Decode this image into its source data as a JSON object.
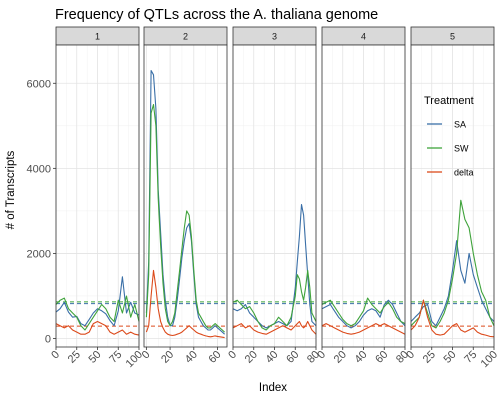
{
  "chart_data": {
    "type": "line",
    "title": "Frequency of QTLs across the A. thaliana genome",
    "xlabel": "Index",
    "ylabel": "# of Transcripts",
    "ylim": [
      -200,
      6900
    ],
    "y_ticks": [
      0,
      2000,
      4000,
      6000
    ],
    "grid": true,
    "legend": {
      "title": "Treatment",
      "placement": "inside-top-right-panel-5"
    },
    "colors": {
      "SA": "#3a6fa7",
      "SW": "#3fa33b",
      "delta": "#dc4a1b"
    },
    "thresholds": [
      {
        "series": "SA",
        "value": 820
      },
      {
        "series": "SW",
        "value": 860
      },
      {
        "series": "delta",
        "value": 290
      }
    ],
    "panels": [
      {
        "label": "1",
        "xlim": [
          0,
          100
        ],
        "x_ticks": [
          0,
          25,
          50,
          75,
          100
        ],
        "series": [
          {
            "name": "SA",
            "x": [
              0,
              5,
              10,
              15,
              20,
              25,
              30,
              35,
              40,
              45,
              50,
              55,
              60,
              65,
              70,
              75,
              80,
              85,
              90,
              95,
              100
            ],
            "y": [
              620,
              700,
              850,
              620,
              500,
              520,
              350,
              300,
              450,
              600,
              700,
              650,
              580,
              420,
              300,
              650,
              1450,
              600,
              850,
              600,
              550
            ]
          },
          {
            "name": "SW",
            "x": [
              0,
              5,
              10,
              15,
              20,
              25,
              30,
              35,
              40,
              45,
              50,
              55,
              60,
              65,
              70,
              75,
              80,
              85,
              90,
              95,
              100
            ],
            "y": [
              800,
              900,
              950,
              700,
              600,
              500,
              300,
              200,
              350,
              500,
              650,
              800,
              700,
              500,
              400,
              900,
              600,
              1000,
              500,
              800,
              400
            ]
          },
          {
            "name": "delta",
            "x": [
              0,
              5,
              10,
              15,
              20,
              25,
              30,
              35,
              40,
              45,
              50,
              55,
              60,
              65,
              70,
              75,
              80,
              85,
              90,
              95,
              100
            ],
            "y": [
              350,
              300,
              250,
              300,
              200,
              150,
              100,
              100,
              150,
              350,
              400,
              350,
              300,
              150,
              100,
              150,
              200,
              100,
              150,
              100,
              80
            ]
          }
        ]
      },
      {
        "label": "2",
        "xlim": [
          -2,
          68
        ],
        "x_ticks": [
          0,
          20,
          40,
          60
        ],
        "series": [
          {
            "name": "SA",
            "x": [
              0,
              2,
              4,
              6,
              8,
              10,
              12,
              14,
              16,
              18,
              20,
              22,
              24,
              26,
              28,
              30,
              32,
              34,
              36,
              38,
              40,
              42,
              44,
              46,
              48,
              50,
              52,
              54,
              56,
              58,
              60,
              62,
              64,
              66
            ],
            "y": [
              600,
              1800,
              6300,
              6200,
              5400,
              3500,
              2500,
              1500,
              900,
              500,
              300,
              300,
              500,
              900,
              1400,
              1900,
              2300,
              2600,
              2700,
              2300,
              1500,
              800,
              500,
              400,
              300,
              250,
              200,
              200,
              250,
              300,
              250,
              200,
              150,
              100
            ]
          },
          {
            "name": "SW",
            "x": [
              0,
              2,
              4,
              6,
              8,
              10,
              12,
              14,
              16,
              18,
              20,
              22,
              24,
              26,
              28,
              30,
              32,
              34,
              36,
              38,
              40,
              42,
              44,
              46,
              48,
              50,
              52,
              54,
              56,
              58,
              60,
              62,
              64,
              66
            ],
            "y": [
              500,
              1500,
              5300,
              5500,
              5000,
              3300,
              2200,
              1300,
              700,
              400,
              300,
              400,
              600,
              1100,
              1600,
              2100,
              2600,
              3000,
              2900,
              2400,
              1600,
              900,
              600,
              500,
              400,
              300,
              250,
              250,
              300,
              350,
              300,
              250,
              200,
              150
            ]
          },
          {
            "name": "delta",
            "x": [
              0,
              2,
              4,
              6,
              8,
              10,
              12,
              14,
              16,
              18,
              20,
              22,
              24,
              26,
              28,
              30,
              32,
              34,
              36,
              38,
              40,
              42,
              44,
              46,
              48,
              50,
              52,
              54,
              56,
              58,
              60,
              62,
              64,
              66
            ],
            "y": [
              150,
              300,
              1000,
              1600,
              1200,
              700,
              400,
              250,
              150,
              100,
              80,
              70,
              80,
              100,
              120,
              150,
              200,
              250,
              300,
              250,
              200,
              150,
              120,
              100,
              80,
              60,
              50,
              40,
              50,
              60,
              50,
              40,
              30,
              20
            ]
          }
        ]
      },
      {
        "label": "3",
        "xlim": [
          0,
          80
        ],
        "x_ticks": [
          0,
          20,
          40,
          60,
          80
        ],
        "series": [
          {
            "name": "SA",
            "x": [
              0,
              4,
              8,
              12,
              16,
              20,
              24,
              28,
              32,
              36,
              40,
              44,
              48,
              52,
              56,
              60,
              62,
              64,
              66,
              68,
              70,
              72,
              74,
              76,
              80
            ],
            "y": [
              700,
              650,
              700,
              800,
              600,
              500,
              400,
              300,
              250,
              300,
              350,
              400,
              350,
              300,
              400,
              1200,
              1800,
              2400,
              3150,
              2900,
              2200,
              1500,
              800,
              400,
              300
            ]
          },
          {
            "name": "SW",
            "x": [
              0,
              4,
              8,
              12,
              16,
              20,
              24,
              28,
              32,
              36,
              40,
              44,
              48,
              52,
              56,
              60,
              62,
              64,
              66,
              68,
              70,
              72,
              74,
              76,
              80
            ],
            "y": [
              850,
              900,
              800,
              700,
              750,
              600,
              400,
              250,
              200,
              300,
              350,
              500,
              400,
              300,
              500,
              1000,
              1500,
              1400,
              1100,
              900,
              1200,
              1600,
              1200,
              600,
              400
            ]
          },
          {
            "name": "delta",
            "x": [
              0,
              4,
              8,
              12,
              16,
              20,
              24,
              28,
              32,
              36,
              40,
              44,
              48,
              52,
              56,
              60,
              62,
              64,
              66,
              68,
              70,
              72,
              74,
              76,
              80
            ],
            "y": [
              250,
              300,
              350,
              250,
              300,
              200,
              150,
              120,
              100,
              150,
              200,
              250,
              300,
              250,
              200,
              300,
              350,
              400,
              300,
              250,
              300,
              400,
              300,
              200,
              100
            ]
          }
        ]
      },
      {
        "label": "4",
        "xlim": [
          0,
          80
        ],
        "x_ticks": [
          0,
          20,
          40,
          60,
          80
        ],
        "series": [
          {
            "name": "SA",
            "x": [
              0,
              4,
              8,
              12,
              16,
              20,
              24,
              28,
              32,
              36,
              40,
              44,
              48,
              52,
              56,
              60,
              64,
              68,
              72,
              76,
              80
            ],
            "y": [
              700,
              750,
              800,
              650,
              500,
              400,
              300,
              250,
              300,
              400,
              550,
              650,
              700,
              650,
              500,
              800,
              900,
              800,
              600,
              400,
              300
            ]
          },
          {
            "name": "SW",
            "x": [
              0,
              4,
              8,
              12,
              16,
              20,
              24,
              28,
              32,
              36,
              40,
              44,
              48,
              52,
              56,
              60,
              64,
              68,
              72,
              76,
              80
            ],
            "y": [
              800,
              850,
              900,
              750,
              600,
              450,
              350,
              300,
              350,
              500,
              650,
              950,
              800,
              700,
              600,
              750,
              850,
              700,
              500,
              400,
              350
            ]
          },
          {
            "name": "delta",
            "x": [
              0,
              4,
              8,
              12,
              16,
              20,
              24,
              28,
              32,
              36,
              40,
              44,
              48,
              52,
              56,
              60,
              64,
              68,
              72,
              76,
              80
            ],
            "y": [
              300,
              350,
              300,
              250,
              200,
              150,
              120,
              100,
              120,
              150,
              200,
              250,
              300,
              350,
              300,
              350,
              300,
              250,
              200,
              150,
              100
            ]
          }
        ]
      },
      {
        "label": "5",
        "xlim": [
          0,
          100
        ],
        "x_ticks": [
          0,
          25,
          50,
          75,
          100
        ],
        "series": [
          {
            "name": "SA",
            "x": [
              0,
              5,
              10,
              15,
              20,
              25,
              30,
              35,
              40,
              45,
              50,
              55,
              60,
              65,
              70,
              75,
              80,
              85,
              90,
              95,
              100
            ],
            "y": [
              400,
              500,
              600,
              750,
              800,
              400,
              300,
              500,
              700,
              1000,
              1600,
              2300,
              1600,
              1300,
              2000,
              1500,
              1200,
              900,
              700,
              500,
              400
            ]
          },
          {
            "name": "SW",
            "x": [
              0,
              5,
              10,
              15,
              20,
              25,
              30,
              35,
              40,
              45,
              50,
              55,
              60,
              65,
              70,
              75,
              80,
              85,
              90,
              95,
              100
            ],
            "y": [
              300,
              400,
              500,
              900,
              600,
              300,
              250,
              400,
              600,
              900,
              1400,
              2000,
              3250,
              2800,
              2600,
              2000,
              1500,
              1100,
              900,
              500,
              300
            ]
          },
          {
            "name": "delta",
            "x": [
              0,
              5,
              10,
              15,
              20,
              25,
              30,
              35,
              40,
              45,
              50,
              55,
              60,
              65,
              70,
              75,
              80,
              85,
              90,
              95,
              100
            ],
            "y": [
              200,
              300,
              500,
              900,
              500,
              200,
              100,
              80,
              100,
              200,
              300,
              350,
              200,
              150,
              200,
              250,
              150,
              100,
              80,
              50,
              40
            ]
          }
        ]
      }
    ]
  }
}
